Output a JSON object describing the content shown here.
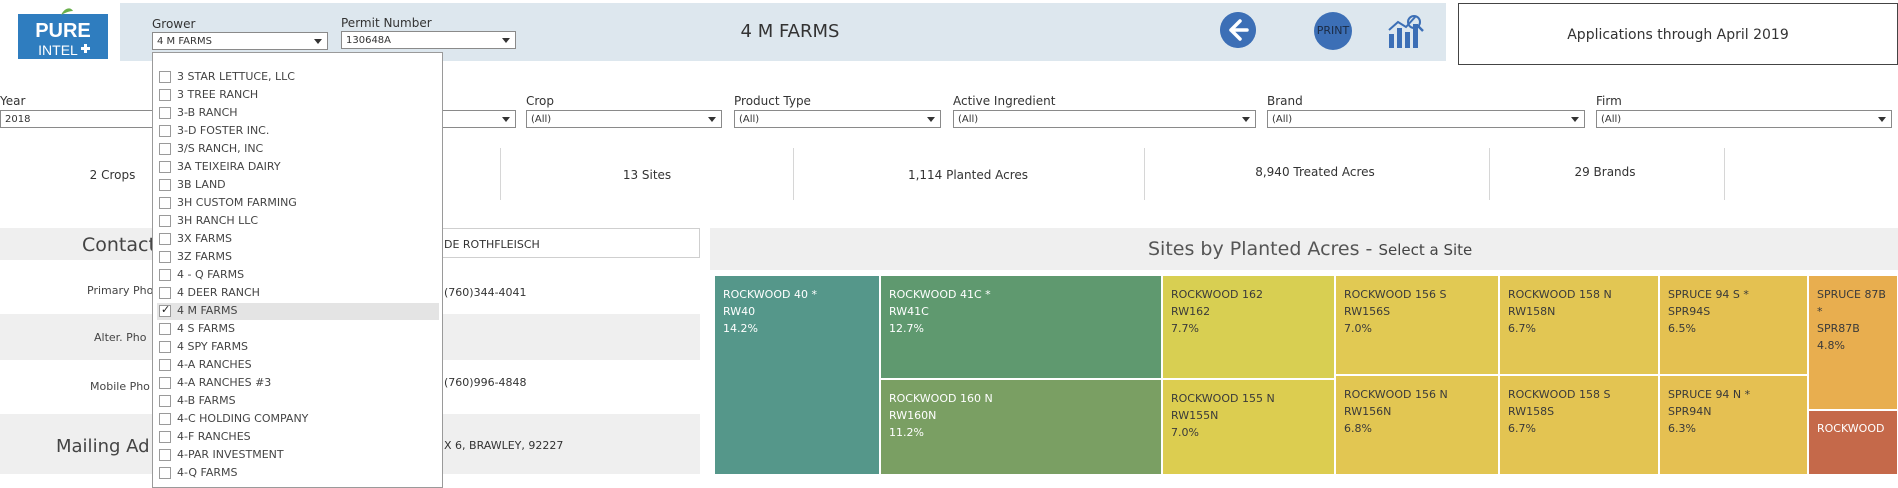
{
  "header": {
    "grower_label": "Grower",
    "grower_value": "4 M FARMS",
    "permit_label": "Permit Number",
    "permit_value": "130648A",
    "title": "4 M FARMS",
    "print_label": "PRINT",
    "applications_text": "Applications through April 2019",
    "logo_text_top": "PURE",
    "logo_text_bottom": "INTEL"
  },
  "filters": {
    "year_label": "Year",
    "year_value": "2018",
    "crop_label": "Crop",
    "crop_value": "(All)",
    "product_type_label": "Product Type",
    "product_type_value": "(All)",
    "active_ingredient_label": "Active Ingredient",
    "active_ingredient_value": "(All)",
    "brand_label": "Brand",
    "brand_value": "(All)",
    "firm_label": "Firm",
    "firm_value": "(All)"
  },
  "stats": {
    "crops": "2 Crops",
    "sites": "13 Sites",
    "planted": "1,114 Planted Acres",
    "treated": "8,940 Treated Acres",
    "brands": "29 Brands"
  },
  "contact": {
    "heading": "Contact",
    "name_partial": "DE ROTHFLEISCH",
    "primary_label": "Primary Pho",
    "primary_value": "(760)344-4041",
    "alter_label": "Alter. Pho",
    "mobile_label": "Mobile Pho",
    "mobile_value": "(760)996-4848",
    "mailing_heading": "Mailing Ad",
    "mailing_value": "X 6, BRAWLEY, 92227"
  },
  "sites_chart": {
    "title": "Sites by Planted Acres -",
    "subtitle": "Select a Site",
    "tiles": [
      {
        "name": "ROCKWOOD 40 *",
        "code": "RW40",
        "pct": "14.2%",
        "color": "#55978a"
      },
      {
        "name": "ROCKWOOD 41C *",
        "code": "RW41C",
        "pct": "12.7%",
        "color": "#5f996f"
      },
      {
        "name": "ROCKWOOD 160 N",
        "code": "RW160N",
        "pct": "11.2%",
        "color": "#7a9f63"
      },
      {
        "name": "ROCKWOOD 162",
        "code": "RW162",
        "pct": "7.7%",
        "color": "#d8cf52"
      },
      {
        "name": "ROCKWOOD 155 N",
        "code": "RW155N",
        "pct": "7.0%",
        "color": "#dccd50"
      },
      {
        "name": "ROCKWOOD 156 S",
        "code": "RW156S",
        "pct": "7.0%",
        "color": "#e1c953"
      },
      {
        "name": "ROCKWOOD 156 N",
        "code": "RW156N",
        "pct": "6.8%",
        "color": "#e2c652"
      },
      {
        "name": "ROCKWOOD 158 N",
        "code": "RW158N",
        "pct": "6.7%",
        "color": "#e2c653"
      },
      {
        "name": "ROCKWOOD 158 S",
        "code": "RW158S",
        "pct": "6.7%",
        "color": "#e3c452"
      },
      {
        "name": "SPRUCE 94 S *",
        "code": "SPR94S",
        "pct": "6.5%",
        "color": "#e4c151"
      },
      {
        "name": "SPRUCE 94 N *",
        "code": "SPR94N",
        "pct": "6.3%",
        "color": "#e5c052"
      },
      {
        "name": "SPRUCE 87B *",
        "code": "SPR87B",
        "pct": "4.8%",
        "color": "#e8ae4f"
      },
      {
        "name": "ROCKWOOD",
        "code": "",
        "pct": "",
        "color": "#c5694a"
      }
    ]
  },
  "grower_dropdown": {
    "items": [
      {
        "label": "3 STAR LETTUCE, LLC",
        "checked": false
      },
      {
        "label": "3 TREE RANCH",
        "checked": false
      },
      {
        "label": "3-B RANCH",
        "checked": false
      },
      {
        "label": "3-D FOSTER INC.",
        "checked": false
      },
      {
        "label": "3/S RANCH, INC",
        "checked": false
      },
      {
        "label": "3A TEIXEIRA DAIRY",
        "checked": false
      },
      {
        "label": "3B LAND",
        "checked": false
      },
      {
        "label": "3H CUSTOM FARMING",
        "checked": false
      },
      {
        "label": "3H RANCH LLC",
        "checked": false
      },
      {
        "label": "3X FARMS",
        "checked": false
      },
      {
        "label": "3Z FARMS",
        "checked": false
      },
      {
        "label": "4 - Q FARMS",
        "checked": false
      },
      {
        "label": "4 DEER RANCH",
        "checked": false
      },
      {
        "label": "4 M FARMS",
        "checked": true
      },
      {
        "label": "4 S FARMS",
        "checked": false
      },
      {
        "label": "4 SPY FARMS",
        "checked": false
      },
      {
        "label": "4-A RANCHES",
        "checked": false
      },
      {
        "label": "4-A RANCHES #3",
        "checked": false
      },
      {
        "label": "4-B FARMS",
        "checked": false
      },
      {
        "label": "4-C HOLDING COMPANY",
        "checked": false
      },
      {
        "label": "4-F RANCHES",
        "checked": false
      },
      {
        "label": "4-PAR INVESTMENT",
        "checked": false
      },
      {
        "label": "4-Q FARMS",
        "checked": false
      }
    ]
  },
  "colors": {
    "header_bg": "#dde7ee",
    "accent_blue": "#3c6fb6",
    "logo_blue": "#2f7dbf"
  }
}
